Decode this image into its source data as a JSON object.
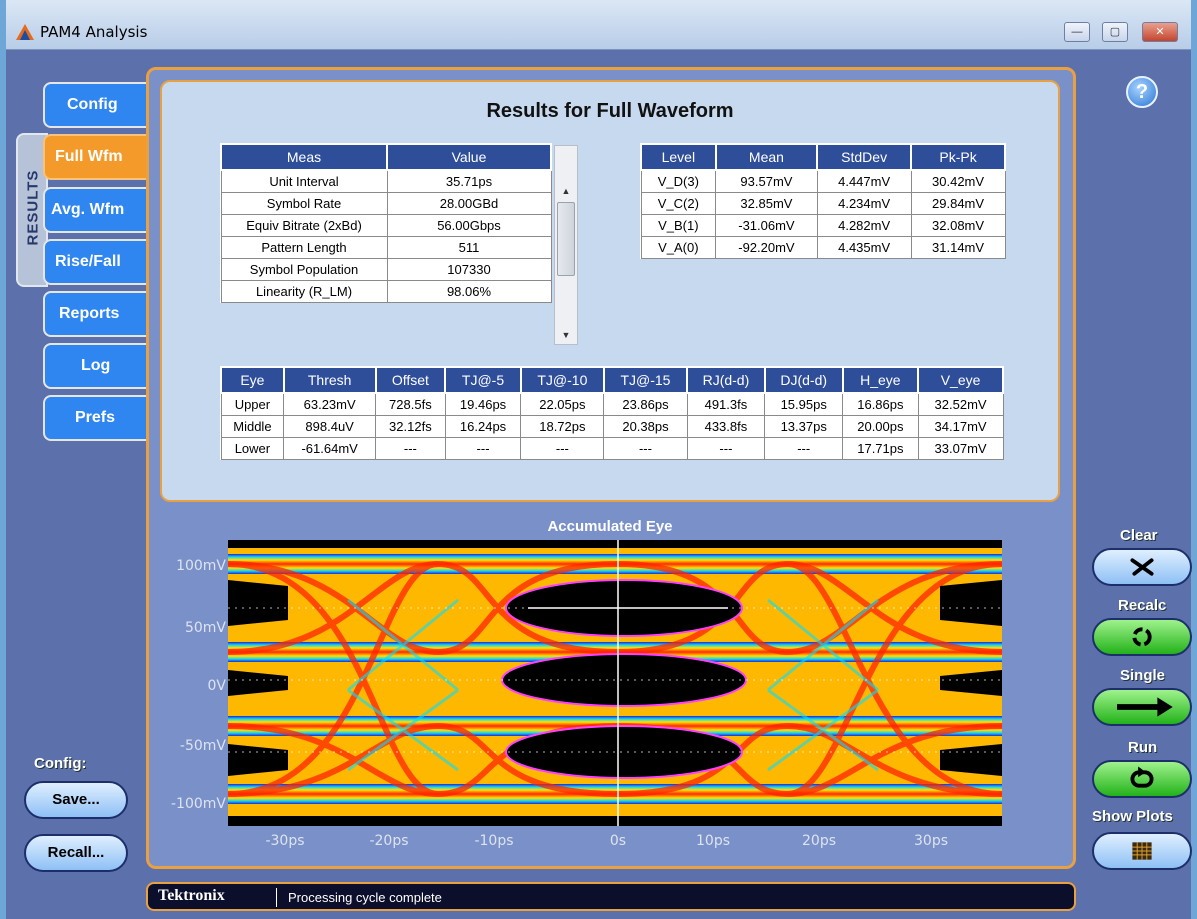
{
  "window": {
    "title": "PAM4 Analysis",
    "minimize": "—",
    "maximize": "▢",
    "close": "✕"
  },
  "tabs": [
    {
      "label": "Config"
    },
    {
      "label": "Full Wfm"
    },
    {
      "label": "Avg. Wfm"
    },
    {
      "label": "Rise/Fall"
    },
    {
      "label": "Reports"
    },
    {
      "label": "Log"
    },
    {
      "label": "Prefs"
    }
  ],
  "results_rail": "RESULTS",
  "results_title": "Results for Full Waveform",
  "meas_table": {
    "headers": [
      "Meas",
      "Value"
    ],
    "rows": [
      [
        "Unit Interval",
        "35.71ps"
      ],
      [
        "Symbol Rate",
        "28.00GBd"
      ],
      [
        "Equiv Bitrate (2xBd)",
        "56.00Gbps"
      ],
      [
        "Pattern Length",
        "511"
      ],
      [
        "Symbol Population",
        "107330"
      ],
      [
        "Linearity (R_LM)",
        "98.06%"
      ]
    ]
  },
  "level_table": {
    "headers": [
      "Level",
      "Mean",
      "StdDev",
      "Pk-Pk"
    ],
    "rows": [
      [
        "V_D(3)",
        "93.57mV",
        "4.447mV",
        "30.42mV"
      ],
      [
        "V_C(2)",
        "32.85mV",
        "4.234mV",
        "29.84mV"
      ],
      [
        "V_B(1)",
        "-31.06mV",
        "4.282mV",
        "32.08mV"
      ],
      [
        "V_A(0)",
        "-92.20mV",
        "4.435mV",
        "31.14mV"
      ]
    ]
  },
  "eye_table": {
    "headers": [
      "Eye",
      "Thresh",
      "Offset",
      "TJ@-5",
      "TJ@-10",
      "TJ@-15",
      "RJ(d-d)",
      "DJ(d-d)",
      "H_eye",
      "V_eye"
    ],
    "rows": [
      [
        "Upper",
        "63.23mV",
        "728.5fs",
        "19.46ps",
        "22.05ps",
        "23.86ps",
        "491.3fs",
        "15.95ps",
        "16.86ps",
        "32.52mV"
      ],
      [
        "Middle",
        "898.4uV",
        "32.12fs",
        "16.24ps",
        "18.72ps",
        "20.38ps",
        "433.8fs",
        "13.37ps",
        "20.00ps",
        "34.17mV"
      ],
      [
        "Lower",
        "-61.64mV",
        "---",
        "---",
        "---",
        "---",
        "---",
        "---",
        "17.71ps",
        "33.07mV"
      ]
    ]
  },
  "plot": {
    "title": "Accumulated Eye",
    "y_ticks": [
      "100mV",
      "50mV",
      "0V",
      "-50mV",
      "-100mV"
    ],
    "x_ticks": [
      "-30ps",
      "-20ps",
      "-10ps",
      "0s",
      "10ps",
      "20ps",
      "30ps"
    ]
  },
  "left_controls": {
    "config_label": "Config:",
    "save": "Save...",
    "recall": "Recall..."
  },
  "right_controls": {
    "clear": "Clear",
    "recalc": "Recalc",
    "single": "Single",
    "run": "Run",
    "show_plots": "Show Plots"
  },
  "status": {
    "brand": "Tektronix",
    "message": "Processing cycle complete"
  },
  "colors": {
    "tab_blue": "#2f86f0",
    "tab_active": "#f39a2a",
    "accent_orange": "#e9a040",
    "header_blue": "#2f4e9a"
  }
}
